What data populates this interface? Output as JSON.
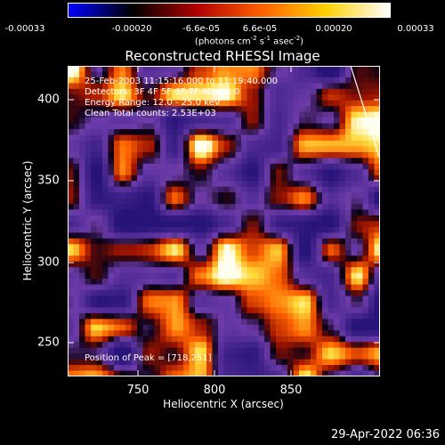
{
  "colorbar": {
    "ticks": [
      "-0.00033",
      "-0.00020",
      "-6.6e-05",
      "6.6e-05",
      "0.00020",
      "0.00033"
    ],
    "units_prefix": "(photons cm",
    "units_exp1": "-2",
    "units_mid": " s",
    "units_exp2": "-1",
    "units_mid2": " asec",
    "units_exp3": "-2",
    "units_suffix": ")",
    "stops": [
      "#0000ff",
      "#000000",
      "#b00000",
      "#ff6000",
      "#ffd000",
      "#ffffff"
    ]
  },
  "title": "Reconstructed RHESSI Image",
  "annotations": {
    "time": "25-Feb-2003 11:15:16.000 to 11:19:40.000",
    "detectors": "Detectors: 3F 4F 5F 6F 7F 8F, Att 0",
    "energy": "Energy Range: 12.0 - 25.0 keV",
    "clean": "Clean     Total counts: 2.53E+03",
    "peak": "Position of Peak = [718,251]"
  },
  "axes": {
    "xlabel": "Heliocentric X (arcsec)",
    "ylabel": "Heliocentric Y (arcsec)",
    "xticks": [
      "750",
      "800",
      "850"
    ],
    "yticks": [
      "400",
      "350",
      "300",
      "250"
    ]
  },
  "footer_timestamp": "29-Apr-2022 06:36"
}
